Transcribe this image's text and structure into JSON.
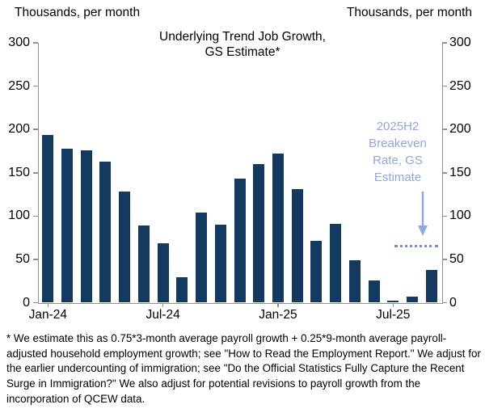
{
  "header": {
    "axis_title_left": "Thousands, per month",
    "axis_title_right": "Thousands, per month"
  },
  "chart_data": {
    "type": "bar",
    "title": "Underlying Trend Job Growth, GS Estimate*",
    "title_line1": "Underlying Trend Job Growth,",
    "title_line2": "GS Estimate*",
    "ylabel_left": "Thousands, per month",
    "ylabel_right": "Thousands, per month",
    "ylim": [
      0,
      300
    ],
    "yticks": [
      0,
      50,
      100,
      150,
      200,
      250,
      300
    ],
    "grid": false,
    "legend": "none",
    "categories": [
      "Jan-24",
      "Feb-24",
      "Mar-24",
      "Apr-24",
      "May-24",
      "Jun-24",
      "Jul-24",
      "Aug-24",
      "Sep-24",
      "Oct-24",
      "Nov-24",
      "Dec-24",
      "Jan-25",
      "Feb-25",
      "Mar-25",
      "Apr-25",
      "May-25",
      "Jun-25",
      "Jul-25",
      "Aug-25",
      "Sep-25"
    ],
    "values": [
      194,
      178,
      176,
      163,
      128,
      89,
      69,
      29,
      104,
      90,
      143,
      160,
      172,
      131,
      71,
      91,
      49,
      26,
      2,
      7,
      38
    ],
    "xtick_labels": [
      "Jan-24",
      "Jul-24",
      "Jan-25",
      "Jul-25"
    ],
    "xtick_indices": [
      0,
      6,
      12,
      18
    ],
    "bar_color": "#14395f",
    "axis_color": "#909090",
    "annotation": {
      "lines": [
        "2025H2",
        "Breakeven",
        "Rate, GS",
        "Estimate"
      ],
      "color": "#8ea9db"
    },
    "breakeven_line": {
      "label": "2025H2 Breakeven Rate, GS Estimate",
      "value": 65,
      "style": "dotted",
      "color": "#7b8cd0"
    }
  },
  "footnote": "* We estimate this as 0.75*3-month average payroll growth + 0.25*9-month average payroll-adjusted household employment growth; see \"How to Read the Employment Report.\" We adjust for the earlier undercounting of immigration; see \"Do the Official Statistics Fully Capture the Recent Surge in Immigration?\" We also adjust for potential revisions to payroll growth from the incorporation of QCEW data."
}
